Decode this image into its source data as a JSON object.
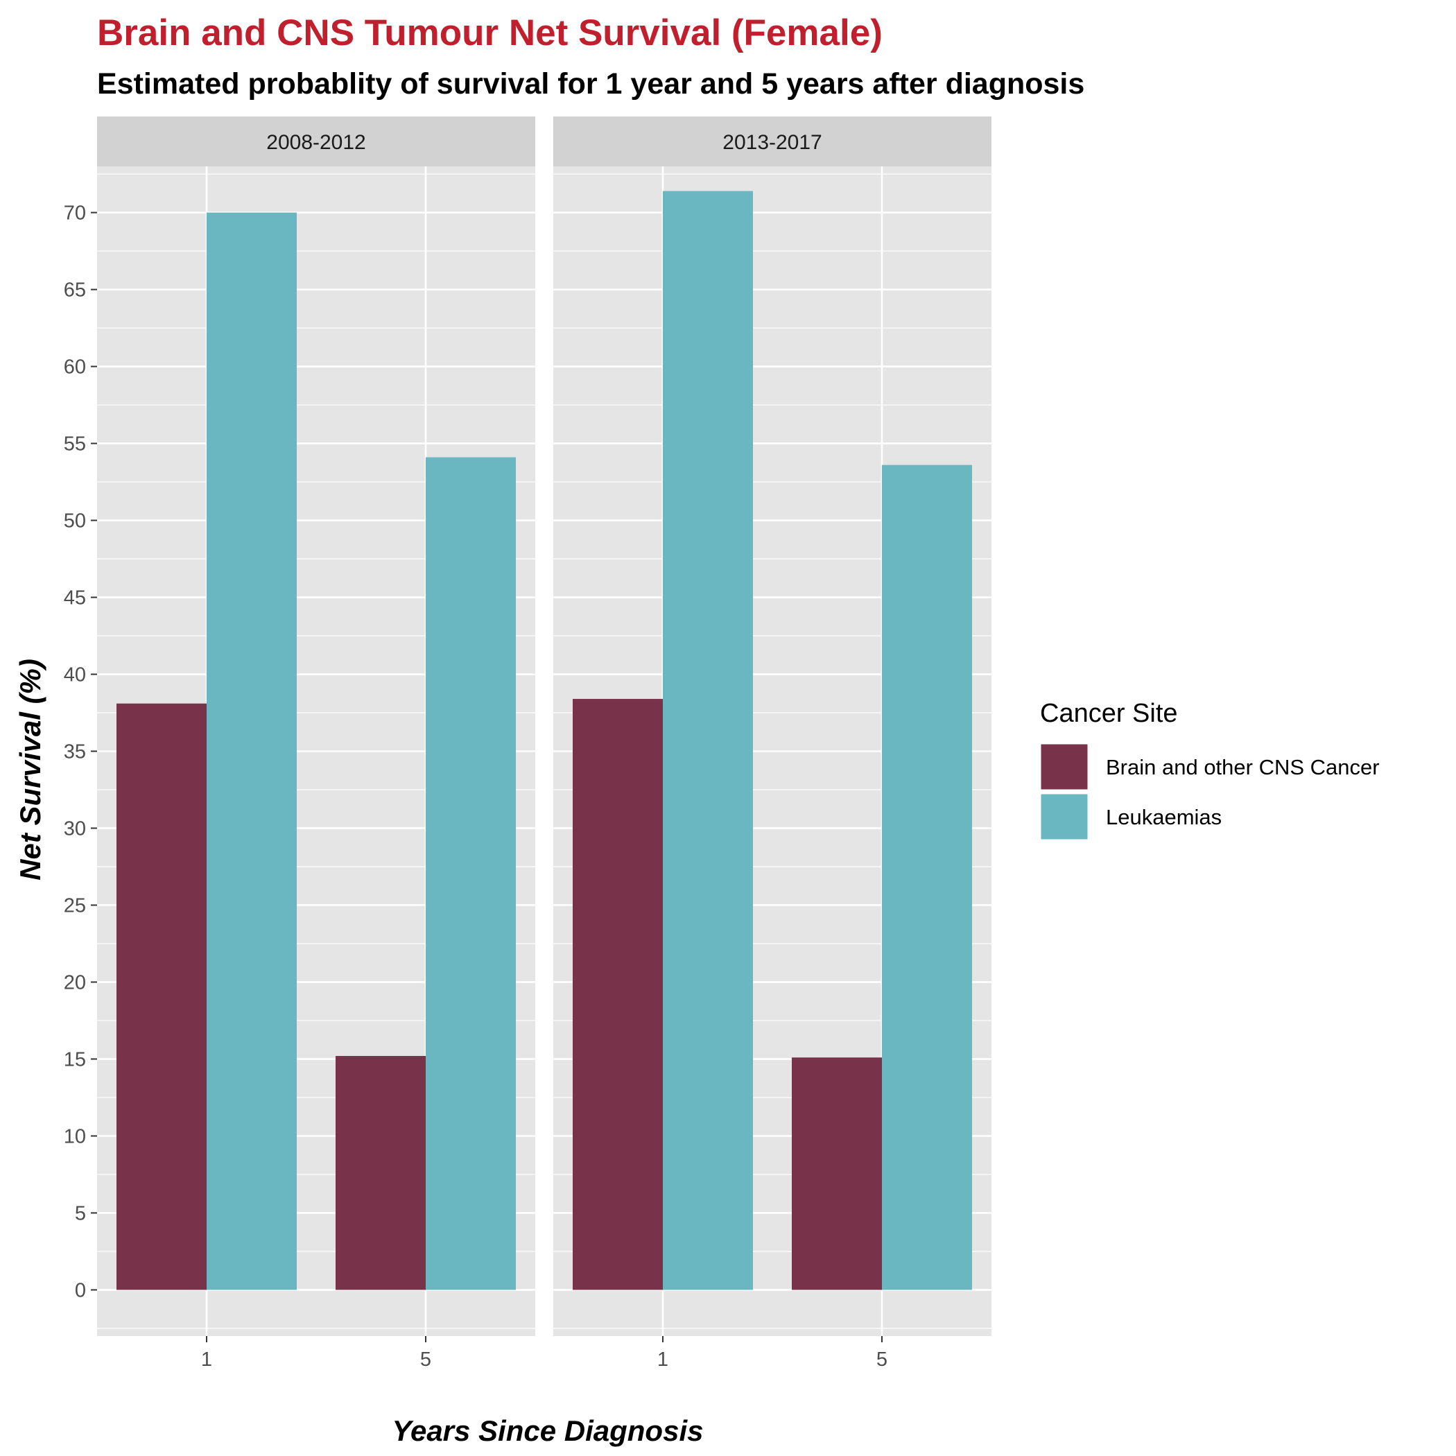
{
  "chart_data": {
    "type": "bar",
    "title": "Brain and CNS Tumour Net Survival (Female)",
    "subtitle": "Estimated probablity of survival for 1 year and 5 years after diagnosis",
    "xlabel": "Years Since Diagnosis",
    "ylabel": "Net Survival (%)",
    "ylim": [
      -3,
      73
    ],
    "y_ticks": [
      "0",
      "5",
      "10",
      "15",
      "20",
      "25",
      "30",
      "35",
      "40",
      "45",
      "50",
      "55",
      "60",
      "65",
      "70"
    ],
    "grid": true,
    "categories": [
      "1",
      "5"
    ],
    "legend": {
      "title": "Cancer Site",
      "position": "right"
    },
    "colors": {
      "title": "#C0202E",
      "panel_background": "#E5E5E5",
      "strip_background": "#D2D2D2",
      "gridline": "#FFFFFF"
    },
    "facets": [
      {
        "label": "2008-2012",
        "series": [
          {
            "name": "Brain and other CNS Cancer",
            "color": "#78334B",
            "values": [
              38.1,
              15.2
            ]
          },
          {
            "name": "Leukaemias",
            "color": "#6AB7C1",
            "values": [
              70.0,
              54.1
            ]
          }
        ]
      },
      {
        "label": "2013-2017",
        "series": [
          {
            "name": "Brain and other CNS Cancer",
            "color": "#78334B",
            "values": [
              38.4,
              15.1
            ]
          },
          {
            "name": "Leukaemias",
            "color": "#6AB7C1",
            "values": [
              71.4,
              53.6
            ]
          }
        ]
      }
    ]
  }
}
